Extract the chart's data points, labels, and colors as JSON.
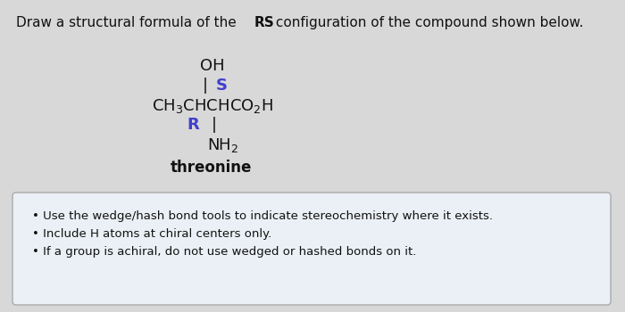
{
  "title_part1": "Draw a structural formula of the ",
  "title_bold": "RS",
  "title_part2": " configuration of the compound shown below.",
  "title_fontsize": 11,
  "title_color": "#111111",
  "bg_color": "#d8d8d8",
  "formula_OH": "OH",
  "formula_pipe_S": "| S",
  "formula_main": "CH₃CHCHCO₂H",
  "formula_R_pipe": "R  |",
  "formula_NH2": "NH₂",
  "formula_label": "threonine",
  "color_black": "#111111",
  "color_blue": "#4040cc",
  "bullet1": "Use the wedge/hash bond tools to indicate stereochemistry where it exists.",
  "bullet2": "Include H atoms at chiral centers only.",
  "bullet3": "If a group is achiral, do not use wedged or hashed bonds on it.",
  "bullet_fontsize": 9.5,
  "box_bg": "#eaf0f5",
  "box_edge": "#aaaaaa",
  "formula_fontsize": 13
}
